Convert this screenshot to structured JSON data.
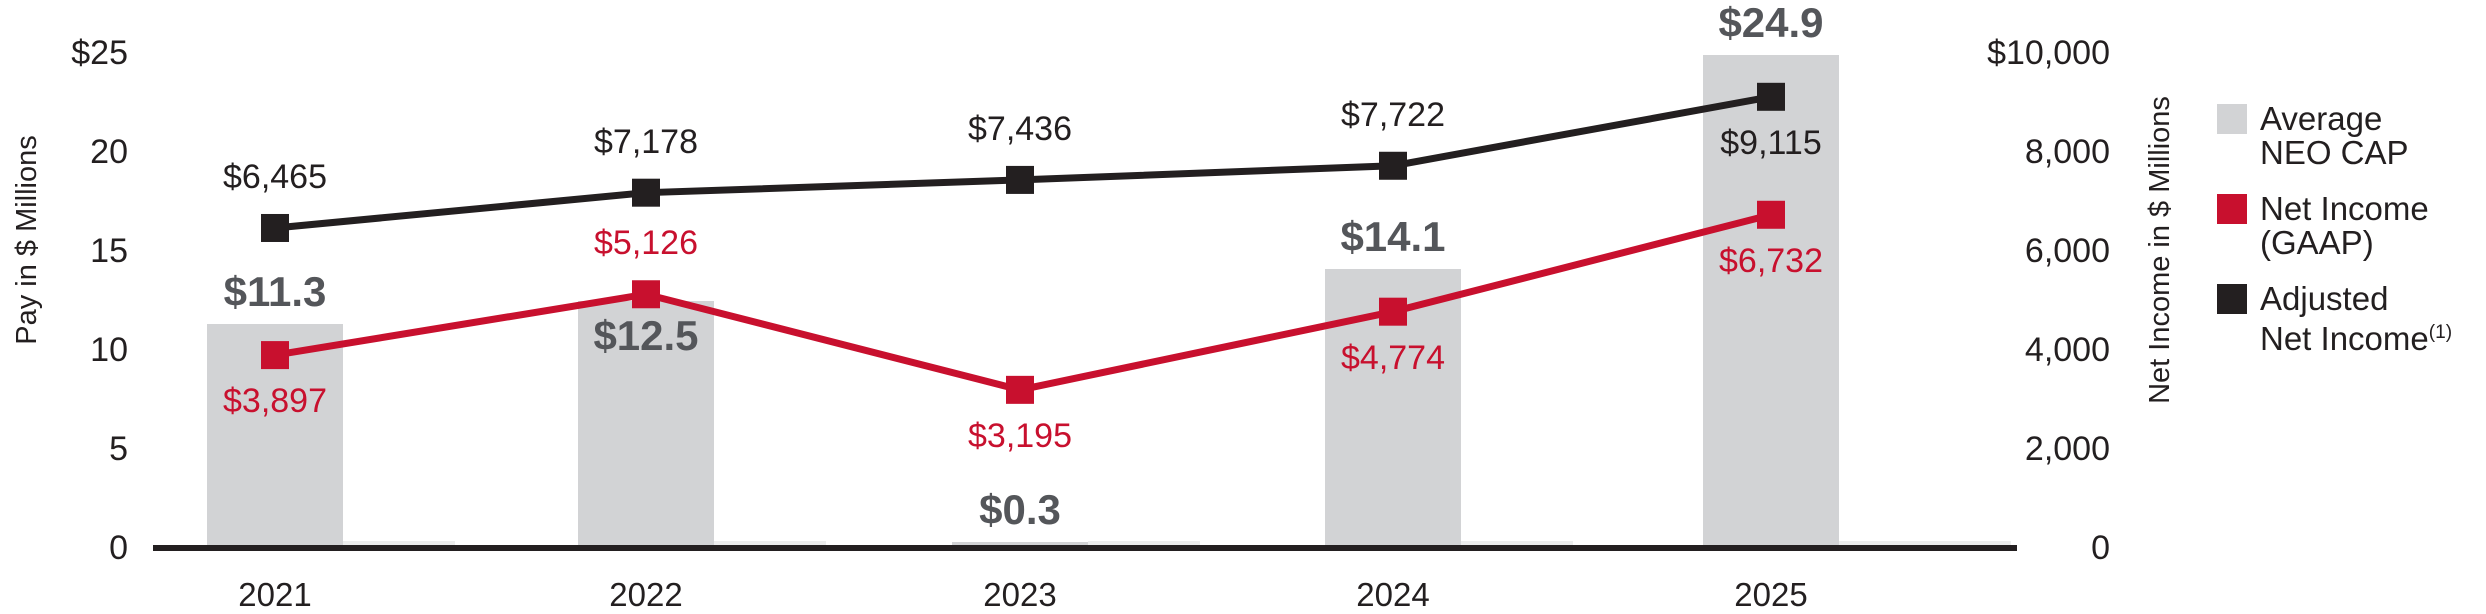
{
  "chart_data": {
    "type": "combo-bar-line",
    "title": "",
    "categories": [
      "2021",
      "2022",
      "2023",
      "2024",
      "2025"
    ],
    "series": [
      {
        "name": "Average NEO CAP",
        "type": "bar",
        "axis": "left",
        "color": "#d2d3d5",
        "label_color": "#54565a",
        "values": [
          11.3,
          12.5,
          0.3,
          14.1,
          24.9
        ],
        "labels": [
          "$11.3",
          "$12.5",
          "$0.3",
          "$14.1",
          "$24.9"
        ],
        "label_side": [
          "above",
          "inside",
          "above",
          "above",
          "above"
        ]
      },
      {
        "name": "Net Income (GAAP)",
        "type": "line",
        "axis": "right",
        "color": "#c8102e",
        "label_color": "#c8102e",
        "values": [
          3897,
          5126,
          3195,
          4774,
          6732
        ],
        "labels": [
          "$3,897",
          "$5,126",
          "$3,195",
          "$4,774",
          "$6,732"
        ],
        "label_side": [
          "below",
          "above",
          "below",
          "below",
          "below"
        ]
      },
      {
        "name": "Adjusted Net Income (1)",
        "type": "line",
        "axis": "right",
        "color": "#231f20",
        "label_color": "#231f20",
        "values": [
          6465,
          7178,
          7436,
          7722,
          9115
        ],
        "labels": [
          "$6,465",
          "$7,178",
          "$7,436",
          "$7,722",
          "$9,115"
        ],
        "label_side": [
          "above",
          "above",
          "above",
          "above",
          "below"
        ]
      }
    ],
    "left_axis": {
      "title": "Pay in $ Millions",
      "range": [
        0,
        25
      ],
      "ticks": [
        {
          "label": "$25",
          "value": 25
        },
        {
          "label": "20",
          "value": 20
        },
        {
          "label": "15",
          "value": 15
        },
        {
          "label": "10",
          "value": 10
        },
        {
          "label": "5",
          "value": 5
        },
        {
          "label": "0",
          "value": 0
        }
      ]
    },
    "right_axis": {
      "title": "Net Income in $ Millions",
      "range": [
        0,
        10000
      ],
      "ticks": [
        {
          "label": "$10,000",
          "value": 10000
        },
        {
          "label": "8,000",
          "value": 8000
        },
        {
          "label": "6,000",
          "value": 6000
        },
        {
          "label": "4,000",
          "value": 4000
        },
        {
          "label": "2,000",
          "value": 2000
        },
        {
          "label": "0",
          "value": 0
        }
      ]
    },
    "grid": false,
    "legend_position": "right"
  },
  "legend": {
    "items": [
      {
        "lines": [
          "Average",
          "NEO CAP"
        ],
        "sup": "",
        "color": "#d2d3d5"
      },
      {
        "lines": [
          "Net Income",
          "(GAAP)"
        ],
        "sup": "",
        "color": "#c8102e"
      },
      {
        "lines": [
          "Adjusted",
          "Net Income"
        ],
        "sup": "(1)",
        "color": "#231f20"
      }
    ]
  },
  "colors": {
    "bar": "#d2d3d5",
    "net_income_gaap": "#c8102e",
    "adjusted_net_income": "#231f20",
    "bar_value_label": "#54565a",
    "axis_text": "#231f20"
  }
}
